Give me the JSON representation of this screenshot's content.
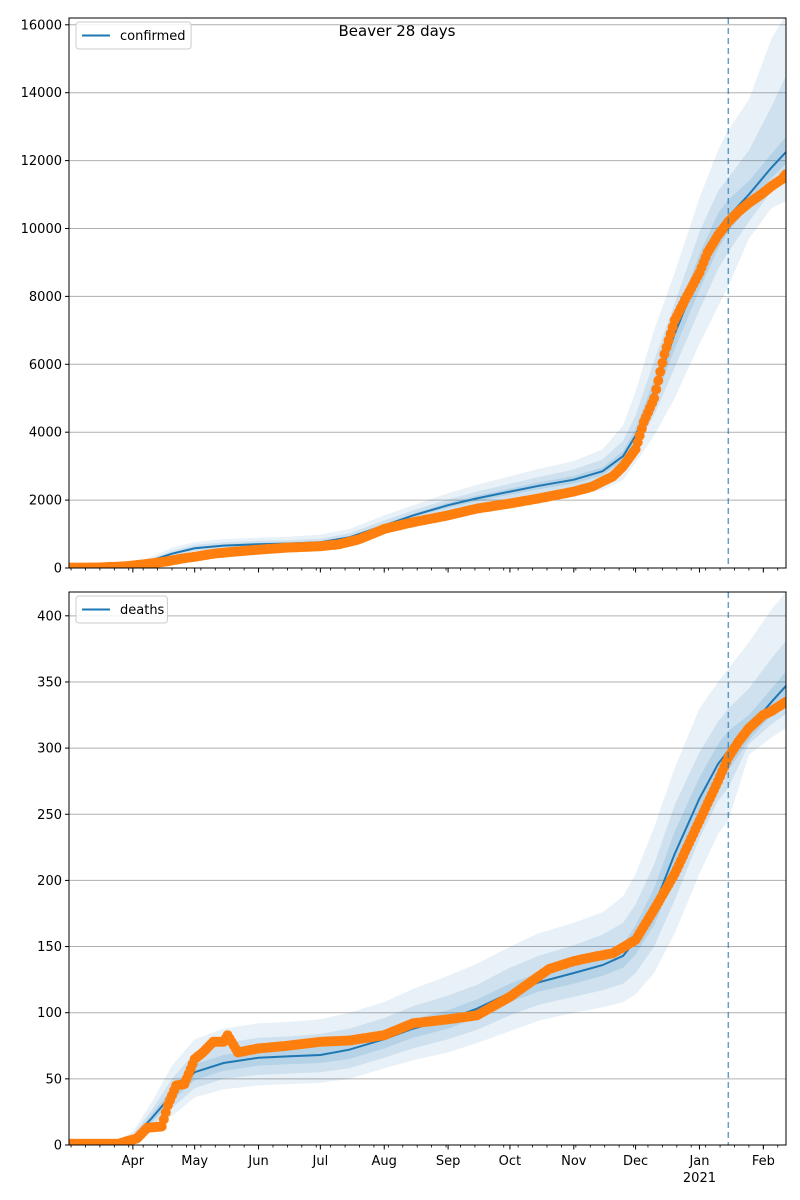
{
  "figure": {
    "title": "Beaver 28 days",
    "x_month_labels": [
      "Apr",
      "May",
      "Jun",
      "Jul",
      "Aug",
      "Sep",
      "Oct",
      "Nov",
      "Dec",
      "Jan",
      "Feb"
    ],
    "x_year_label": "2021",
    "forecast_start_date": "2021-01-15"
  },
  "colors": {
    "model": "#1f77b4",
    "observed": "#ff7f0e",
    "band": "#1f77b4",
    "forecast_line": "#1f77b4",
    "grid": "#b0b0b0"
  },
  "chart_data": [
    {
      "type": "line",
      "title": "Beaver 28 days",
      "legend": [
        "confirmed"
      ],
      "legend_position": "upper-left",
      "grid": "y-major",
      "xlim": [
        "2020-03-01",
        "2021-02-12"
      ],
      "ylim": [
        0,
        16200
      ],
      "yticks": [
        0,
        2000,
        4000,
        6000,
        8000,
        10000,
        12000,
        14000,
        16000
      ],
      "xticks": [
        "Apr",
        "May",
        "Jun",
        "Jul",
        "Aug",
        "Sep",
        "Oct",
        "Nov",
        "Dec",
        "Jan 2021",
        "Feb"
      ],
      "series": [
        {
          "name": "confirmed",
          "kind": "model median line",
          "x": [
            "2020-03-01",
            "2020-03-20",
            "2020-04-01",
            "2020-04-10",
            "2020-04-20",
            "2020-05-01",
            "2020-05-15",
            "2020-06-01",
            "2020-06-15",
            "2020-07-01",
            "2020-07-15",
            "2020-08-01",
            "2020-08-15",
            "2020-09-01",
            "2020-09-15",
            "2020-10-01",
            "2020-10-15",
            "2020-11-01",
            "2020-11-15",
            "2020-11-25",
            "2020-12-01",
            "2020-12-10",
            "2020-12-20",
            "2021-01-01",
            "2021-01-10",
            "2021-01-15",
            "2021-01-25",
            "2021-02-05",
            "2021-02-12"
          ],
          "y": [
            0,
            20,
            100,
            220,
            420,
            580,
            660,
            700,
            720,
            760,
            900,
            1250,
            1550,
            1850,
            2050,
            2250,
            2420,
            2600,
            2850,
            3300,
            3900,
            5200,
            6900,
            8700,
            9900,
            10350,
            11000,
            11800,
            12250
          ]
        },
        {
          "name": "",
          "kind": "observed daily points",
          "x": [
            "2020-03-01",
            "2020-03-15",
            "2020-03-28",
            "2020-04-05",
            "2020-04-12",
            "2020-04-18",
            "2020-04-25",
            "2020-05-01",
            "2020-05-10",
            "2020-05-20",
            "2020-06-01",
            "2020-06-15",
            "2020-07-01",
            "2020-07-10",
            "2020-07-20",
            "2020-08-01",
            "2020-08-15",
            "2020-09-01",
            "2020-09-15",
            "2020-10-01",
            "2020-10-15",
            "2020-11-01",
            "2020-11-10",
            "2020-11-20",
            "2020-11-25",
            "2020-12-01",
            "2020-12-05",
            "2020-12-10",
            "2020-12-15",
            "2020-12-20",
            "2020-12-25",
            "2021-01-01",
            "2021-01-05",
            "2021-01-10",
            "2021-01-15",
            "2021-01-20",
            "2021-01-25",
            "2021-02-01",
            "2021-02-05",
            "2021-02-10",
            "2021-02-12"
          ],
          "y": [
            10,
            15,
            50,
            100,
            150,
            200,
            280,
            330,
            420,
            480,
            540,
            600,
            640,
            700,
            850,
            1150,
            1350,
            1550,
            1750,
            1900,
            2050,
            2250,
            2400,
            2700,
            3000,
            3500,
            4300,
            5000,
            6300,
            7300,
            7900,
            8700,
            9300,
            9800,
            10200,
            10500,
            10750,
            11050,
            11250,
            11450,
            11600
          ]
        }
      ],
      "bands": {
        "x": [
          "2020-03-01",
          "2020-03-20",
          "2020-04-01",
          "2020-04-10",
          "2020-04-20",
          "2020-05-01",
          "2020-05-15",
          "2020-06-01",
          "2020-06-15",
          "2020-07-01",
          "2020-07-15",
          "2020-08-01",
          "2020-08-15",
          "2020-09-01",
          "2020-09-15",
          "2020-10-01",
          "2020-10-15",
          "2020-11-01",
          "2020-11-15",
          "2020-11-25",
          "2020-12-01",
          "2020-12-10",
          "2020-12-20",
          "2021-01-01",
          "2021-01-10",
          "2021-01-15",
          "2021-01-25",
          "2021-02-05",
          "2021-02-12"
        ],
        "outer_low": [
          0,
          10,
          60,
          150,
          300,
          430,
          500,
          540,
          560,
          600,
          720,
          1050,
          1300,
          1550,
          1700,
          1850,
          1980,
          2100,
          2300,
          2600,
          3100,
          3900,
          5000,
          6600,
          7700,
          8300,
          9700,
          10600,
          10800
        ],
        "outer_high": [
          10,
          40,
          160,
          330,
          600,
          760,
          850,
          890,
          920,
          980,
          1150,
          1550,
          1850,
          2200,
          2450,
          2700,
          2920,
          3150,
          3500,
          4200,
          5200,
          7000,
          8700,
          10900,
          12300,
          12900,
          13800,
          15600,
          16300
        ],
        "mid_low": [
          0,
          14,
          80,
          180,
          350,
          500,
          580,
          610,
          640,
          680,
          810,
          1150,
          1430,
          1700,
          1880,
          2050,
          2200,
          2350,
          2580,
          3000,
          3500,
          4500,
          5900,
          7600,
          8800,
          9300,
          10200,
          11100,
          11500
        ],
        "mid_high": [
          5,
          30,
          125,
          270,
          500,
          680,
          760,
          800,
          820,
          860,
          1020,
          1400,
          1700,
          2020,
          2250,
          2480,
          2680,
          2900,
          3200,
          3750,
          4500,
          6100,
          7800,
          9900,
          11100,
          11500,
          12300,
          13600,
          14500
        ],
        "inner_low": [
          0,
          17,
          90,
          200,
          385,
          545,
          625,
          660,
          685,
          725,
          860,
          1200,
          1500,
          1780,
          1970,
          2160,
          2320,
          2490,
          2730,
          3170,
          3720,
          4900,
          6450,
          8200,
          9400,
          9900,
          10650,
          11500,
          11900
        ],
        "inner_high": [
          2,
          24,
          110,
          240,
          455,
          615,
          695,
          740,
          755,
          795,
          940,
          1300,
          1600,
          1920,
          2130,
          2340,
          2520,
          2710,
          2970,
          3450,
          4100,
          5550,
          7300,
          9250,
          10450,
          10850,
          11400,
          12200,
          12700
        ]
      }
    },
    {
      "type": "line",
      "title": "",
      "legend": [
        "deaths"
      ],
      "legend_position": "upper-left",
      "grid": "y-major",
      "xlim": [
        "2020-03-01",
        "2021-02-12"
      ],
      "ylim": [
        0,
        418
      ],
      "yticks": [
        0,
        50,
        100,
        150,
        200,
        250,
        300,
        350,
        400
      ],
      "xticks": [
        "Apr",
        "May",
        "Jun",
        "Jul",
        "Aug",
        "Sep",
        "Oct",
        "Nov",
        "Dec",
        "Jan 2021",
        "Feb"
      ],
      "series": [
        {
          "name": "deaths",
          "kind": "model median line",
          "x": [
            "2020-03-01",
            "2020-03-25",
            "2020-04-01",
            "2020-04-10",
            "2020-04-20",
            "2020-05-01",
            "2020-05-15",
            "2020-06-01",
            "2020-06-15",
            "2020-07-01",
            "2020-07-15",
            "2020-08-01",
            "2020-08-15",
            "2020-09-01",
            "2020-09-15",
            "2020-10-01",
            "2020-10-15",
            "2020-11-01",
            "2020-11-15",
            "2020-11-25",
            "2020-12-01",
            "2020-12-10",
            "2020-12-20",
            "2021-01-01",
            "2021-01-10",
            "2021-01-15",
            "2021-01-25",
            "2021-02-05",
            "2021-02-12"
          ],
          "y": [
            0,
            1,
            5,
            20,
            38,
            55,
            62,
            66,
            67,
            68,
            72,
            80,
            88,
            95,
            103,
            115,
            123,
            130,
            136,
            143,
            155,
            180,
            220,
            262,
            288,
            298,
            315,
            335,
            347
          ]
        },
        {
          "name": "",
          "kind": "observed daily points",
          "x": [
            "2020-03-01",
            "2020-03-25",
            "2020-04-03",
            "2020-04-08",
            "2020-04-15",
            "2020-04-18",
            "2020-04-22",
            "2020-04-26",
            "2020-05-01",
            "2020-05-05",
            "2020-05-10",
            "2020-05-15",
            "2020-05-17",
            "2020-05-22",
            "2020-06-01",
            "2020-06-15",
            "2020-07-01",
            "2020-07-15",
            "2020-08-01",
            "2020-08-15",
            "2020-09-01",
            "2020-09-15",
            "2020-10-01",
            "2020-10-10",
            "2020-10-20",
            "2020-11-01",
            "2020-11-10",
            "2020-11-20",
            "2020-12-01",
            "2020-12-10",
            "2020-12-20",
            "2021-01-01",
            "2021-01-10",
            "2021-01-15",
            "2021-01-20",
            "2021-01-25",
            "2021-02-01",
            "2021-02-05",
            "2021-02-12"
          ],
          "y": [
            1,
            1,
            5,
            13,
            14,
            30,
            45,
            46,
            65,
            70,
            78,
            78,
            83,
            70,
            73,
            75,
            78,
            79,
            83,
            92,
            95,
            98,
            112,
            122,
            133,
            139,
            142,
            145,
            155,
            178,
            205,
            245,
            275,
            293,
            305,
            315,
            325,
            328,
            335
          ]
        }
      ],
      "bands": {
        "x": [
          "2020-03-01",
          "2020-03-25",
          "2020-04-01",
          "2020-04-10",
          "2020-04-20",
          "2020-05-01",
          "2020-05-15",
          "2020-06-01",
          "2020-06-15",
          "2020-07-01",
          "2020-07-15",
          "2020-08-01",
          "2020-08-15",
          "2020-09-01",
          "2020-09-15",
          "2020-10-01",
          "2020-10-15",
          "2020-11-01",
          "2020-11-15",
          "2020-11-25",
          "2020-12-01",
          "2020-12-10",
          "2020-12-20",
          "2021-01-01",
          "2021-01-10",
          "2021-01-15",
          "2021-01-25",
          "2021-02-05",
          "2021-02-12"
        ],
        "outer_low": [
          0,
          0,
          2,
          10,
          22,
          36,
          42,
          45,
          46,
          47,
          50,
          58,
          64,
          70,
          77,
          86,
          94,
          100,
          104,
          108,
          114,
          130,
          160,
          205,
          235,
          245,
          295,
          308,
          315
        ],
        "outer_high": [
          2,
          4,
          10,
          32,
          60,
          80,
          88,
          92,
          93,
          95,
          100,
          108,
          118,
          128,
          137,
          150,
          160,
          168,
          176,
          188,
          205,
          240,
          285,
          330,
          350,
          360,
          380,
          405,
          418
        ],
        "mid_low": [
          0,
          0,
          3,
          14,
          28,
          43,
          50,
          53,
          54,
          55,
          58,
          66,
          73,
          80,
          87,
          98,
          106,
          112,
          117,
          122,
          130,
          150,
          185,
          232,
          260,
          270,
          303,
          318,
          326
        ],
        "mid_high": [
          1,
          3,
          8,
          26,
          50,
          70,
          77,
          81,
          82,
          84,
          88,
          96,
          105,
          113,
          121,
          134,
          143,
          151,
          159,
          168,
          182,
          212,
          257,
          297,
          320,
          330,
          345,
          368,
          381
        ],
        "inner_low": [
          0,
          0,
          4,
          17,
          33,
          49,
          56,
          60,
          61,
          62,
          65,
          73,
          81,
          88,
          96,
          108,
          116,
          122,
          128,
          134,
          144,
          166,
          203,
          246,
          273,
          283,
          306,
          325,
          335
        ],
        "inner_high": [
          1,
          2,
          6,
          23,
          43,
          61,
          68,
          72,
          73,
          74,
          79,
          87,
          95,
          102,
          110,
          122,
          130,
          138,
          144,
          152,
          166,
          194,
          237,
          278,
          303,
          313,
          325,
          345,
          358
        ]
      }
    }
  ]
}
